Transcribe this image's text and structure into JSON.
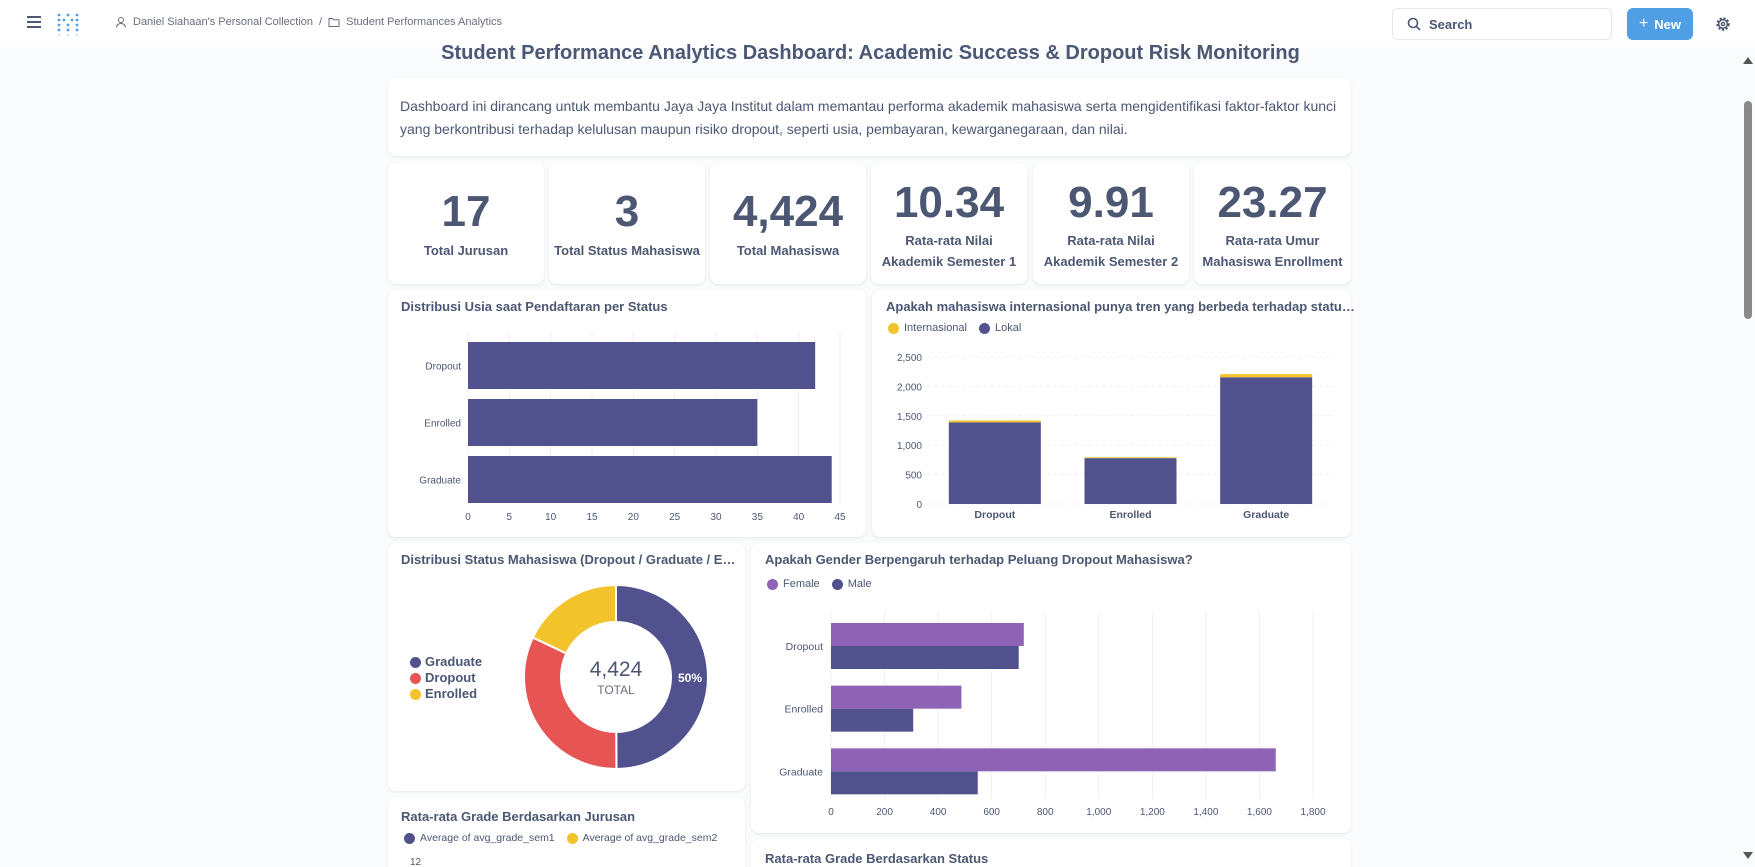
{
  "header": {
    "breadcrumb": [
      "Daniel Siahaan's Personal Collection",
      "Student Performances Analytics"
    ],
    "search_label": "Search",
    "new_label": "New"
  },
  "dashboard": {
    "title": "Student Performance Analytics Dashboard: Academic Success & Dropout Risk Monitoring",
    "intro": "Dashboard ini dirancang untuk membantu Jaya Jaya Institut dalam memantau performa akademik mahasiswa serta mengidentifikasi faktor-faktor kunci yang berkontribusi terhadap kelulusan maupun risiko dropout, seperti usia, pembayaran, kewarganegaraan, dan nilai."
  },
  "kpis": [
    {
      "value": "17",
      "label": "Total Jurusan"
    },
    {
      "value": "3",
      "label": "Total Status Mahasiswa"
    },
    {
      "value": "4,424",
      "label": "Total Mahasiswa"
    },
    {
      "value": "10.34",
      "label_1": "Rata-rata Nilai",
      "label_2": "Akademik Semester 1"
    },
    {
      "value": "9.91",
      "label_1": "Rata-rata Nilai",
      "label_2": "Akademik Semester 2"
    },
    {
      "value": "23.27",
      "label_1": "Rata-rata Umur",
      "label_2": "Mahasiswa Enrollment"
    }
  ],
  "colors": {
    "purple": "#51528d",
    "yellow": "#f2c32a",
    "red": "#e75454",
    "violet": "#8e63b6"
  },
  "chart_data": [
    {
      "type": "bar",
      "orientation": "horizontal",
      "title": "Distribusi Usia saat Pendaftaran per Status",
      "categories": [
        "Dropout",
        "Enrolled",
        "Graduate"
      ],
      "values": [
        42,
        35,
        44
      ],
      "xlim": [
        0,
        45
      ],
      "xticks": [
        "0",
        "5",
        "10",
        "15",
        "20",
        "25",
        "30",
        "35",
        "40",
        "45"
      ]
    },
    {
      "type": "bar",
      "stacked": true,
      "title": "Apakah mahasiswa internasional punya tren yang berbeda terhadap statu…",
      "categories": [
        "Dropout",
        "Enrolled",
        "Graduate"
      ],
      "series": [
        {
          "name": "Lokal",
          "values": [
            1389,
            780,
            2155
          ]
        },
        {
          "name": "Internasional",
          "values": [
            32,
            14,
            54
          ]
        }
      ],
      "ylim": [
        0,
        2500
      ],
      "yticks": [
        "0",
        "500",
        "1,000",
        "1,500",
        "2,000",
        "2,500"
      ]
    },
    {
      "type": "pie",
      "title": "Distribusi Status Mahasiswa (Dropout / Graduate / E…",
      "labels": [
        "Graduate",
        "Dropout",
        "Enrolled"
      ],
      "values": [
        2209,
        1421,
        794
      ],
      "total": "4,424",
      "total_label": "TOTAL",
      "slice_label": "50%"
    },
    {
      "type": "bar",
      "orientation": "horizontal",
      "title": "Apakah Gender Berpengaruh terhadap Peluang Dropout Mahasiswa?",
      "categories": [
        "Dropout",
        "Enrolled",
        "Graduate"
      ],
      "series": [
        {
          "name": "Female",
          "values": [
            720,
            487,
            1661
          ]
        },
        {
          "name": "Male",
          "values": [
            701,
            307,
            548
          ]
        }
      ],
      "xlim": [
        0,
        1800
      ],
      "xticks": [
        "0",
        "200",
        "400",
        "600",
        "800",
        "1,000",
        "1,200",
        "1,400",
        "1,600",
        "1,800"
      ]
    }
  ],
  "lower": {
    "grade_jurusan_title": "Rata-rata Grade Berdasarkan Jurusan",
    "grade_jurusan_legend": [
      "Average of avg_grade_sem1",
      "Average of avg_grade_sem2"
    ],
    "grade_jurusan_first_tick": "12",
    "grade_status_title": "Rata-rata Grade Berdasarkan Status"
  }
}
